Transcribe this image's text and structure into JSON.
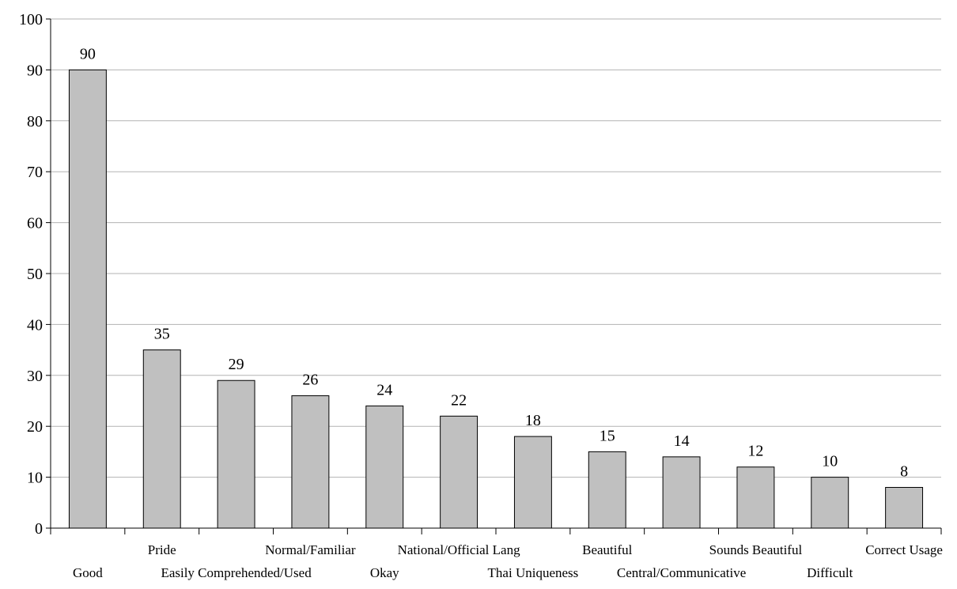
{
  "chart_data": {
    "type": "bar",
    "title": "",
    "xlabel": "",
    "ylabel": "",
    "ylim": [
      0,
      100
    ],
    "yticks": [
      0,
      10,
      20,
      30,
      40,
      50,
      60,
      70,
      80,
      90,
      100
    ],
    "grid": true,
    "legend": "none",
    "bar_color": "#c0c0c0",
    "bar_edge_color": "#000000",
    "grid_color": "#b3b3b3",
    "categories": [
      "Good",
      "Pride",
      "Easily Comprehended/Used",
      "Normal/Familiar",
      "Okay",
      "National/Official Lang",
      "Thai Uniqueness",
      "Beautiful",
      "Central/Communicative",
      "Sounds Beautiful",
      "Difficult",
      "Correct Usage"
    ],
    "values": [
      90,
      35,
      29,
      26,
      24,
      22,
      18,
      15,
      14,
      12,
      10,
      8
    ],
    "data_labels": [
      "90",
      "35",
      "29",
      "26",
      "24",
      "22",
      "18",
      "15",
      "14",
      "12",
      "10",
      "8"
    ]
  }
}
